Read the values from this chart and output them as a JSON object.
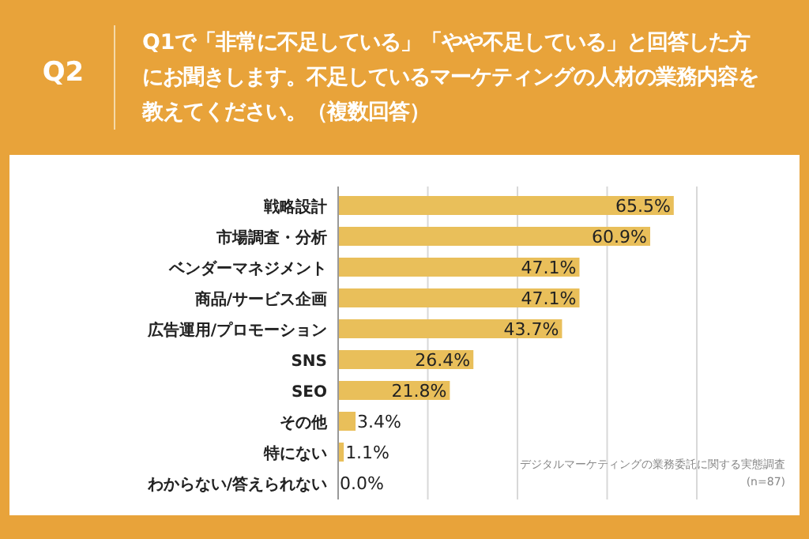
{
  "chart_data": {
    "type": "bar",
    "orientation": "horizontal",
    "title": "Q1で「非常に不足している」「やや不足している」と回答した方にお聞きします。不足しているマーケティングの人材の業務内容を教えてください。（複数回答）",
    "categories": [
      "戦略設計",
      "市場調査・分析",
      "ベンダーマネジメント",
      "商品/サービス企画",
      "広告運用/プロモーション",
      "SNS",
      "SEO",
      "その他",
      "特にない",
      "わからない/答えられない"
    ],
    "values": [
      65.5,
      60.9,
      47.1,
      47.1,
      43.7,
      26.4,
      21.8,
      3.4,
      1.1,
      0.0
    ],
    "value_labels": [
      "65.5%",
      "60.9%",
      "47.1%",
      "47.1%",
      "43.7%",
      "26.4%",
      "21.8%",
      "3.4%",
      "1.1%",
      "0.0%"
    ],
    "color": "#e9bf5a",
    "xlim": [
      0,
      70
    ],
    "xticks": [
      {
        "value": 0,
        "label": null
      },
      {
        "value": 17.5,
        "label": null
      },
      {
        "value": 35,
        "label": null
      },
      {
        "value": 52.5,
        "label": null
      },
      {
        "value": 70,
        "label": null
      }
    ],
    "grid": "x",
    "tick_labels": "y",
    "annotations": [
      "Q2",
      "デジタルマーケティングの業務委託に関する実態調査",
      "(n=87)"
    ]
  }
}
